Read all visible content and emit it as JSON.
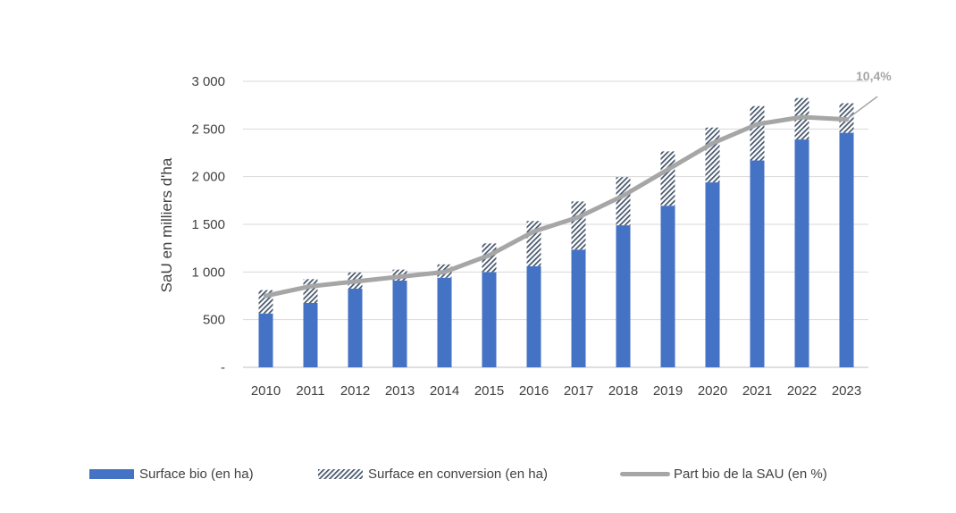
{
  "chart_data": {
    "type": "bar",
    "stacked": true,
    "categories": [
      "2010",
      "2011",
      "2012",
      "2013",
      "2014",
      "2015",
      "2016",
      "2017",
      "2018",
      "2019",
      "2020",
      "2021",
      "2022",
      "2023"
    ],
    "series": [
      {
        "name": "Surface bio (en ha)",
        "kind": "bar",
        "pattern": "solid",
        "color": "#4472C4",
        "values": [
          565,
          675,
          825,
          910,
          940,
          1000,
          1060,
          1235,
          1490,
          1695,
          1940,
          2170,
          2390,
          2460
        ]
      },
      {
        "name": "Surface en conversion (en ha)",
        "kind": "bar",
        "pattern": "diagonal-hatch",
        "color": "#44546A",
        "values": [
          245,
          250,
          170,
          115,
          140,
          300,
          475,
          505,
          505,
          570,
          575,
          570,
          435,
          310
        ]
      },
      {
        "name": "Part bio de la SAU (en %)",
        "kind": "line",
        "color": "#A6A6A6",
        "values": [
          3.0,
          3.4,
          3.6,
          3.8,
          4.0,
          4.7,
          5.7,
          6.3,
          7.2,
          8.3,
          9.4,
          10.2,
          10.5,
          10.4
        ]
      }
    ],
    "ylabel": "SaU en milliers d'ha",
    "ylim": [
      0,
      3000
    ],
    "yticks": [
      {
        "value": 0,
        "label": "-"
      },
      {
        "value": 500,
        "label": "500"
      },
      {
        "value": 1000,
        "label": "1 000"
      },
      {
        "value": 1500,
        "label": "1 500"
      },
      {
        "value": 2000,
        "label": "2 000"
      },
      {
        "value": 2500,
        "label": "2 500"
      },
      {
        "value": 3000,
        "label": "3 000"
      }
    ],
    "line_axis_range": [
      0,
      12
    ],
    "annotation": "10,4%",
    "grid": true,
    "legend_position": "bottom"
  }
}
